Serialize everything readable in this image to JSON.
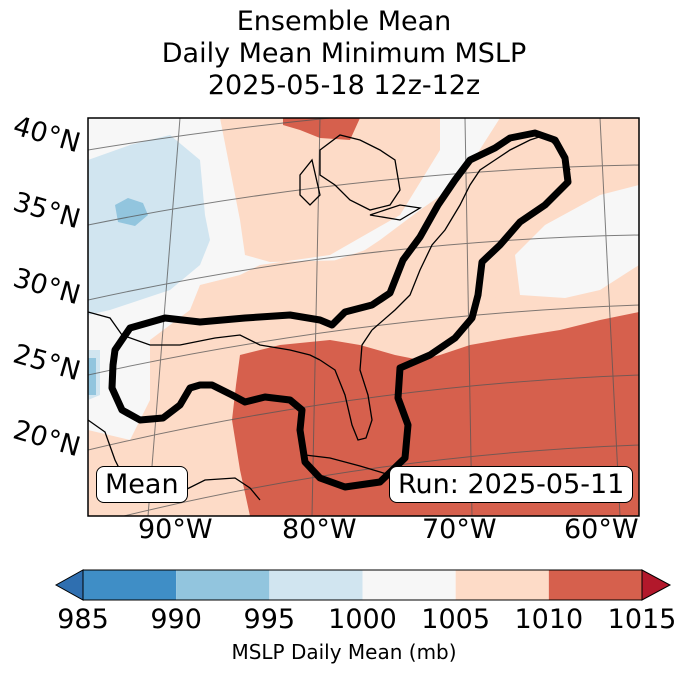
{
  "title": {
    "line1": "Ensemble Mean",
    "line2": "Daily Mean Minimum MSLP",
    "line3": "2025-05-18 12z-12z"
  },
  "map": {
    "lat_labels": [
      "40°N",
      "35°N",
      "30°N",
      "25°N",
      "20°N"
    ],
    "lon_labels": [
      "90°W",
      "80°W",
      "70°W",
      "60°W"
    ],
    "mean_box": "Mean",
    "run_box": "Run: 2025-05-11"
  },
  "colorbar": {
    "ticks": [
      "985",
      "990",
      "995",
      "1000",
      "1005",
      "1010",
      "1015"
    ],
    "label": "MSLP Daily Mean (mb)",
    "colors": [
      "#2f6fb0",
      "#3f8ec6",
      "#92c5de",
      "#d1e5f0",
      "#f7f7f7",
      "#fddbc7",
      "#d6604d",
      "#b2182b"
    ]
  }
}
